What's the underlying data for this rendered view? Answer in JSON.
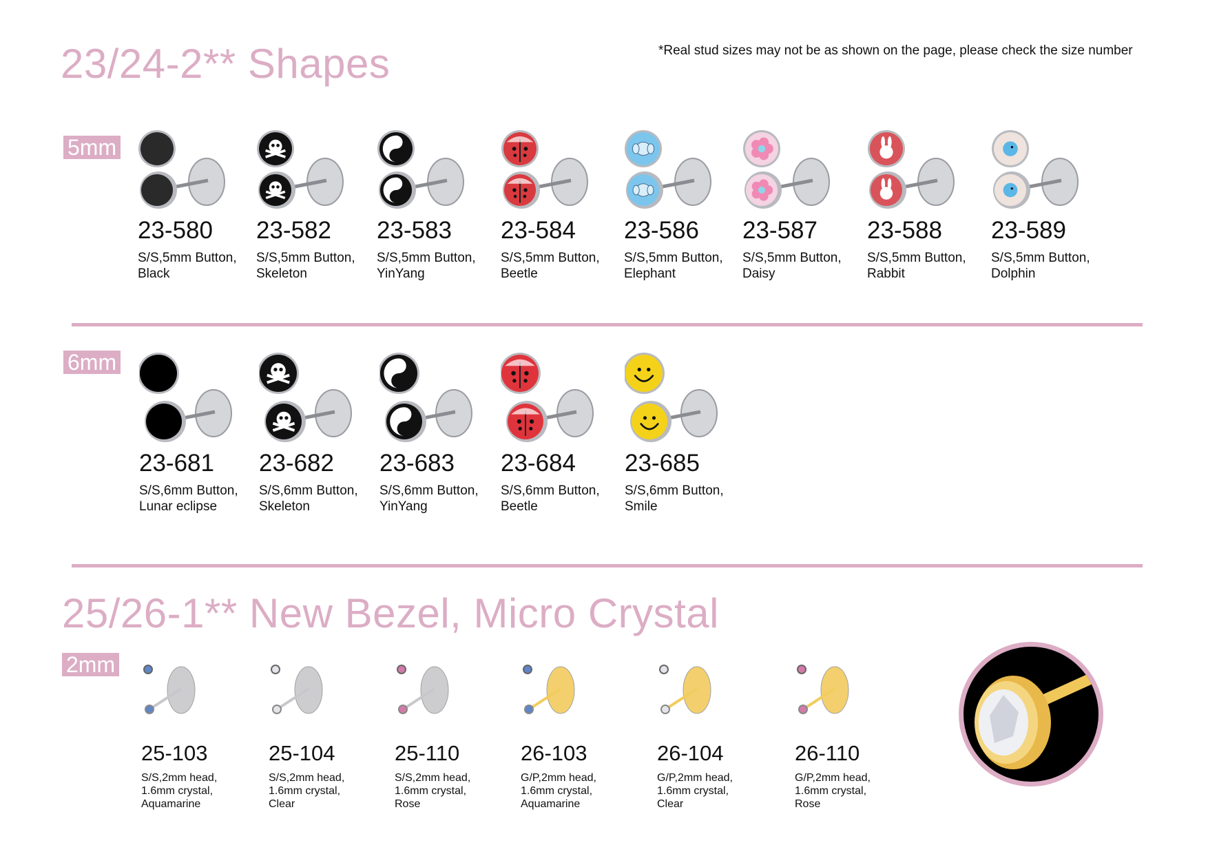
{
  "sections": [
    {
      "title": "23/24-2**  Shapes",
      "note": "*Real stud sizes may not be as shown on the page, please check the size number"
    },
    {
      "title": "25/26-1** New Bezel, Micro  Crystal"
    }
  ],
  "accent_color": "#dcadc5",
  "rows": [
    {
      "size": "5mm",
      "items": [
        {
          "code": "23-580",
          "desc1": "S/S,5mm Button,",
          "desc2": "Black",
          "face": "#2a2a2a",
          "icon": "black-disc"
        },
        {
          "code": "23-582",
          "desc1": "S/S,5mm Button,",
          "desc2": "Skeleton",
          "face": "#111",
          "icon": "skull"
        },
        {
          "code": "23-583",
          "desc1": "S/S,5mm Button,",
          "desc2": "YinYang",
          "face": "#111",
          "icon": "yinyang"
        },
        {
          "code": "23-584",
          "desc1": "S/S,5mm Button,",
          "desc2": "Beetle",
          "face": "#d93a3f",
          "icon": "ladybug"
        },
        {
          "code": "23-586",
          "desc1": "S/S,5mm Button,",
          "desc2": "Elephant",
          "face": "#7cc6ee",
          "icon": "elephant"
        },
        {
          "code": "23-587",
          "desc1": "S/S,5mm Button,",
          "desc2": "Daisy",
          "face": "#f4d3e2",
          "icon": "flower"
        },
        {
          "code": "23-588",
          "desc1": "S/S,5mm Button,",
          "desc2": "Rabbit",
          "face": "#d9535a",
          "icon": "rabbit"
        },
        {
          "code": "23-589",
          "desc1": "S/S,5mm Button,",
          "desc2": "Dolphin",
          "face": "#efe3dd",
          "icon": "dolphin"
        }
      ]
    },
    {
      "size": "6mm",
      "items": [
        {
          "code": "23-681",
          "desc1": "S/S,6mm Button,",
          "desc2": "Lunar eclipse",
          "face": "#000",
          "icon": "black-disc"
        },
        {
          "code": "23-682",
          "desc1": "S/S,6mm Button,",
          "desc2": "Skeleton",
          "face": "#111",
          "icon": "skull"
        },
        {
          "code": "23-683",
          "desc1": "S/S,6mm Button,",
          "desc2": "YinYang",
          "face": "#111",
          "icon": "yinyang"
        },
        {
          "code": "23-684",
          "desc1": "S/S,6mm Button,",
          "desc2": "Beetle",
          "face": "#e0343c",
          "icon": "ladybug"
        },
        {
          "code": "23-685",
          "desc1": "S/S,6mm Button,",
          "desc2": "Smile",
          "face": "#f4d21a",
          "icon": "smiley"
        }
      ]
    },
    {
      "size": "2mm",
      "items": [
        {
          "code": "25-103",
          "desc1": "S/S,2mm head,",
          "desc2": "1.6mm crystal,",
          "desc3": "Aquamarine",
          "metal": "#c8c8cc",
          "stone": "#5f86c8"
        },
        {
          "code": "25-104",
          "desc1": "S/S,2mm head,",
          "desc2": "1.6mm crystal,",
          "desc3": "Clear",
          "metal": "#c8c8cc",
          "stone": "#e4e4ea"
        },
        {
          "code": "25-110",
          "desc1": "S/S,2mm head,",
          "desc2": "1.6mm crystal,",
          "desc3": "Rose",
          "metal": "#c8c8cc",
          "stone": "#d37aaa"
        },
        {
          "code": "26-103",
          "desc1": "G/P,2mm head,",
          "desc2": "1.6mm crystal,",
          "desc3": "Aquamarine",
          "metal": "#f2cc5e",
          "stone": "#5f86c8"
        },
        {
          "code": "26-104",
          "desc1": "G/P,2mm head,",
          "desc2": "1.6mm crystal,",
          "desc3": "Clear",
          "metal": "#f2cc5e",
          "stone": "#e4e4ea"
        },
        {
          "code": "26-110",
          "desc1": "G/P,2mm head,",
          "desc2": "1.6mm crystal,",
          "desc3": "Rose",
          "metal": "#f2cc5e",
          "stone": "#d37aaa"
        }
      ]
    }
  ]
}
